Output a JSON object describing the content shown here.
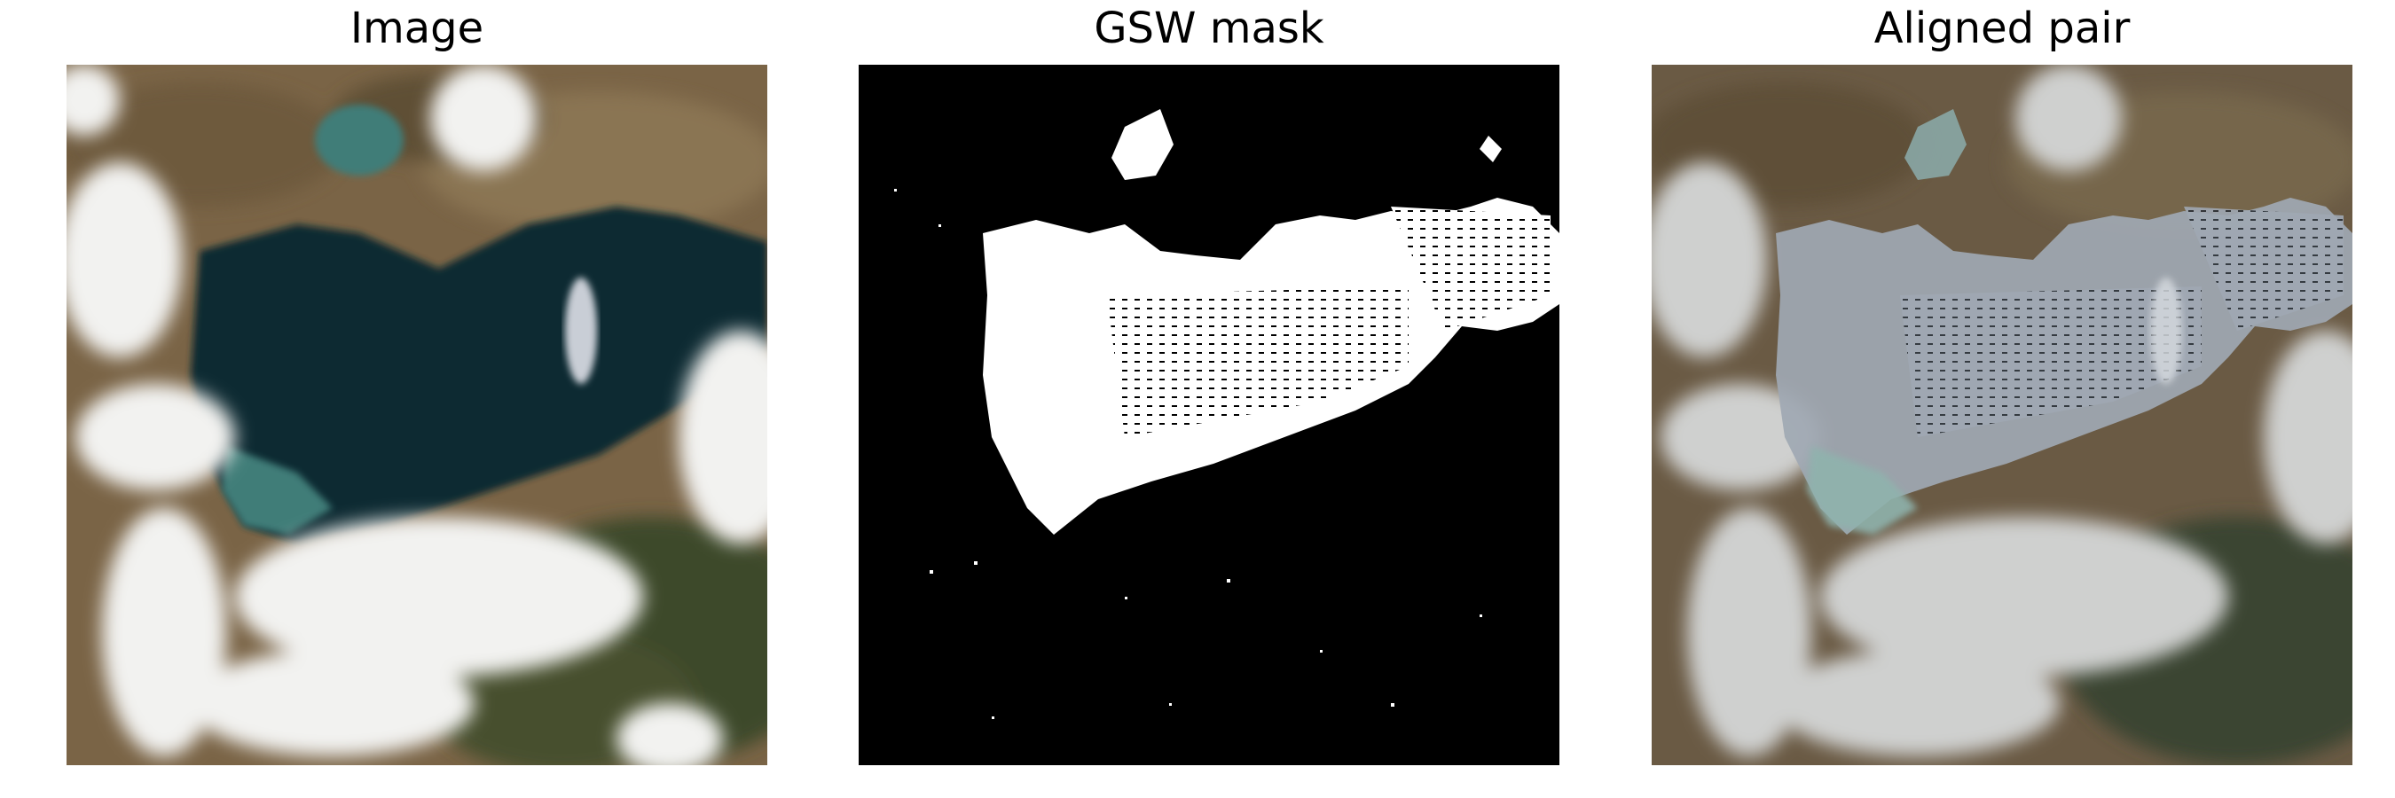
{
  "figure": {
    "panels": [
      {
        "title": "Image",
        "content": "satellite-rgb-image"
      },
      {
        "title": "GSW mask",
        "content": "binary-water-mask"
      },
      {
        "title": "Aligned pair",
        "content": "mask-overlay-on-image"
      }
    ]
  },
  "colors": {
    "background": "#ffffff",
    "water_dark": "#0f2a33",
    "water_shallow": "#3f7d78",
    "land_brown": "#7a6446",
    "vegetation": "#3e4a2b",
    "cloud": "#f2f2f0",
    "mask_water": "#ffffff",
    "mask_land": "#000000",
    "overlay_tint": "#9fa8b3"
  }
}
